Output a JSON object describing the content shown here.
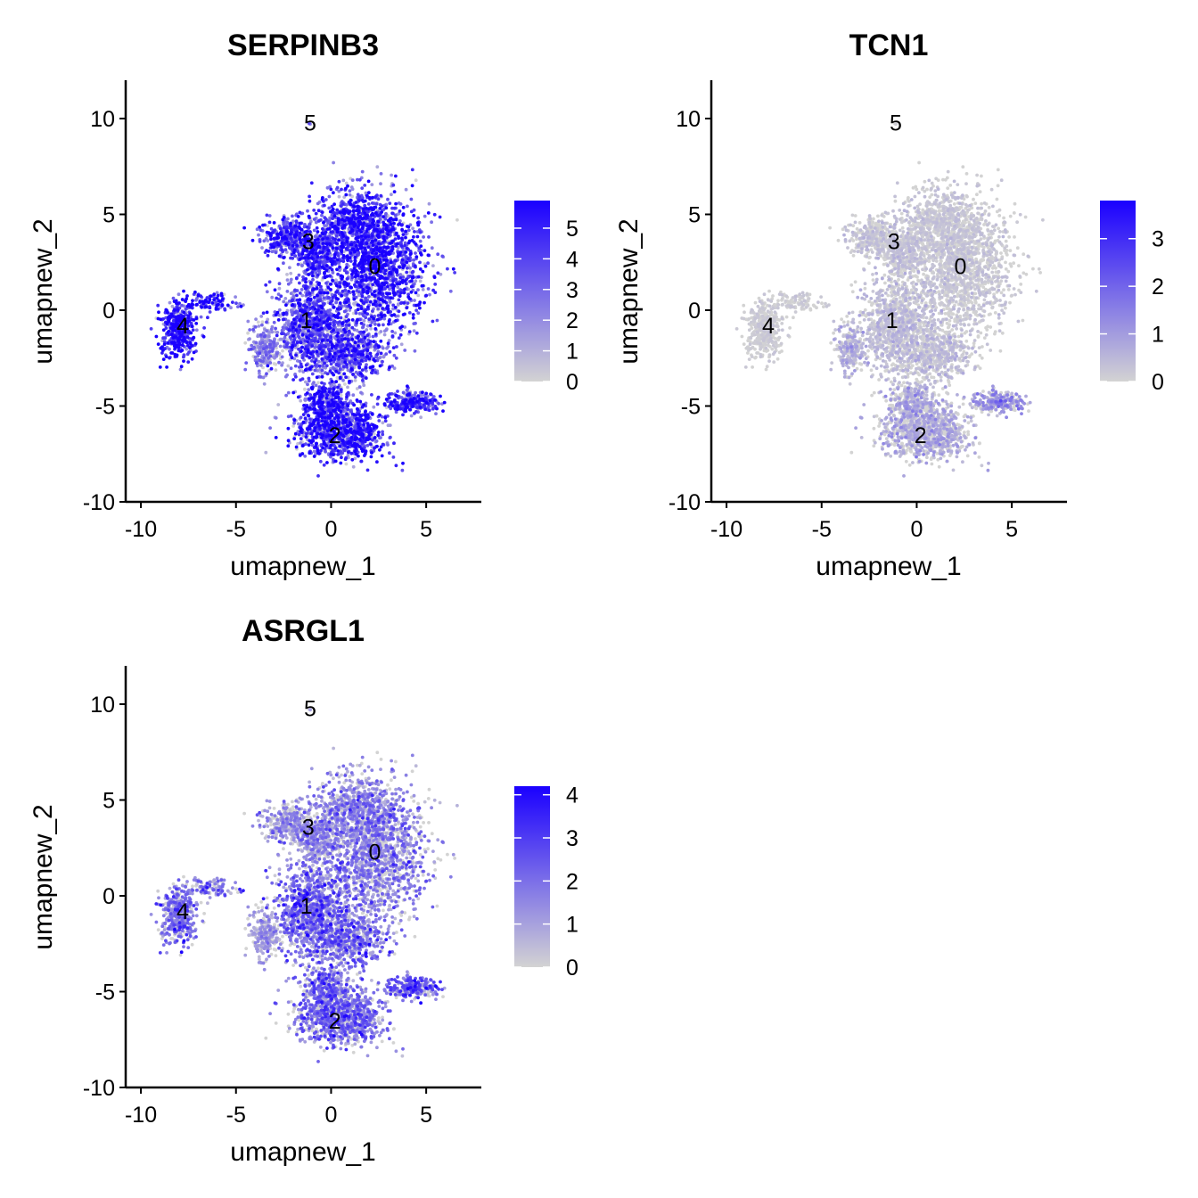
{
  "chart_data": {
    "type": "scatter",
    "xlabel": "umapnew_1",
    "ylabel": "umapnew_2",
    "xlim": [
      -10.8,
      7.9
    ],
    "ylim": [
      -10,
      12
    ],
    "xticks": [
      "-10",
      "-5",
      "0",
      "5"
    ],
    "xtick_values": [
      -10,
      -5,
      0,
      5
    ],
    "yticks": [
      "-10",
      "-5",
      "0",
      "5",
      "10"
    ],
    "ytick_values": [
      -10,
      -5,
      0,
      5,
      10
    ],
    "color_low": "#d3d3d3",
    "color_high": "#1a00ff",
    "clusters": [
      {
        "label": "0",
        "x": 2.3,
        "y": 2.3
      },
      {
        "label": "1",
        "x": -1.3,
        "y": -0.5
      },
      {
        "label": "2",
        "x": 0.2,
        "y": -6.5
      },
      {
        "label": "3",
        "x": -1.2,
        "y": 3.6
      },
      {
        "label": "4",
        "x": -7.8,
        "y": -0.8
      },
      {
        "label": "5",
        "x": -1.1,
        "y": 9.8
      }
    ],
    "panels": [
      {
        "title": "SERPINB3",
        "max": 5.9,
        "legend_ticks": [
          "0",
          "1",
          "2",
          "3",
          "4",
          "5"
        ],
        "legend_values": [
          0,
          1,
          2,
          3,
          4,
          5
        ],
        "mean_by_cluster": {
          "0": 4.3,
          "1": 3.4,
          "2": 4.2,
          "3": 3.8,
          "4": 4.8,
          "5": 3.0,
          "arm": 3.8,
          "left": 2.0
        }
      },
      {
        "title": "TCN1",
        "max": 3.8,
        "legend_ticks": [
          "0",
          "1",
          "2",
          "3"
        ],
        "legend_values": [
          0,
          1,
          2,
          3
        ],
        "mean_by_cluster": {
          "0": 0.25,
          "1": 0.4,
          "2": 0.7,
          "3": 0.3,
          "4": 0.15,
          "5": 0.1,
          "arm": 1.0,
          "left": 0.6
        }
      },
      {
        "title": "ASRGL1",
        "max": 4.2,
        "legend_ticks": [
          "0",
          "1",
          "2",
          "3",
          "4"
        ],
        "legend_values": [
          0,
          1,
          2,
          3,
          4
        ],
        "mean_by_cluster": {
          "0": 1.5,
          "1": 1.9,
          "2": 1.8,
          "3": 1.2,
          "4": 1.7,
          "5": 1.0,
          "arm": 2.0,
          "left": 1.0
        }
      }
    ]
  }
}
